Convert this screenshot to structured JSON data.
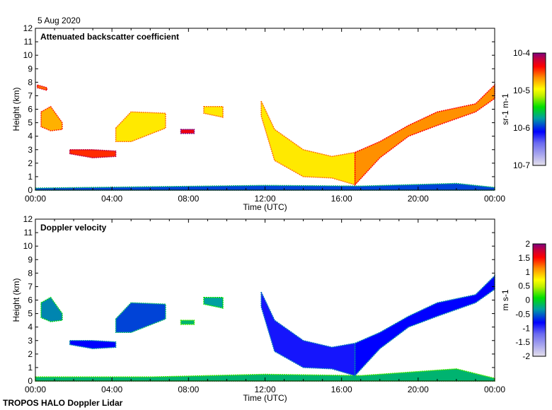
{
  "date_label": "5 Aug 2020",
  "footer": "TROPOS HALO Doppler Lidar",
  "chart_data": [
    {
      "type": "heatmap",
      "title": "Attenuated backscatter coefficient",
      "xlabel": "Time (UTC)",
      "ylabel": "Height (km)",
      "xlim": [
        0,
        24
      ],
      "ylim": [
        0,
        12
      ],
      "xticks": [
        "00:00",
        "04:00",
        "08:00",
        "12:00",
        "16:00",
        "20:00",
        "00:00"
      ],
      "yticks": [
        "0",
        "1",
        "2",
        "3",
        "4",
        "5",
        "6",
        "7",
        "8",
        "9",
        "10",
        "11",
        "12"
      ],
      "colorbar": {
        "label": "sr-1 m-1",
        "scale": "log",
        "ticks": [
          "10-7",
          "10-6",
          "10-5",
          "10-4"
        ],
        "range": [
          1e-07,
          0.0001
        ]
      },
      "features": [
        {
          "name": "boundary-layer-aerosol",
          "value": 0.35,
          "top": [
            [
              0,
              0.15
            ],
            [
              6,
              0.25
            ],
            [
              12,
              0.35
            ],
            [
              17,
              0.3
            ],
            [
              22,
              0.5
            ],
            [
              24,
              0.2
            ]
          ],
          "bottom": [
            [
              24,
              0
            ],
            [
              0,
              0
            ]
          ]
        },
        {
          "name": "cloud-early-high",
          "value": 0.8,
          "top": [
            [
              0.1,
              7.8
            ],
            [
              0.6,
              7.6
            ]
          ],
          "bottom": [
            [
              0.6,
              7.4
            ],
            [
              0.1,
              7.6
            ]
          ]
        },
        {
          "name": "cloud-early",
          "value": 0.75,
          "top": [
            [
              0.3,
              5.8
            ],
            [
              0.8,
              6.2
            ],
            [
              1.4,
              5.0
            ]
          ],
          "bottom": [
            [
              1.4,
              4.5
            ],
            [
              0.8,
              4.4
            ],
            [
              0.3,
              4.7
            ]
          ]
        },
        {
          "name": "cloud-layer-3km",
          "value": 0.85,
          "top": [
            [
              1.8,
              3.0
            ],
            [
              3,
              3.0
            ],
            [
              4.2,
              2.9
            ]
          ],
          "bottom": [
            [
              4.2,
              2.5
            ],
            [
              3,
              2.4
            ],
            [
              1.8,
              2.7
            ]
          ]
        },
        {
          "name": "cloud-5km",
          "value": 0.7,
          "top": [
            [
              4.2,
              4.6
            ],
            [
              5,
              5.8
            ],
            [
              6.8,
              5.7
            ]
          ],
          "bottom": [
            [
              6.8,
              4.6
            ],
            [
              5,
              3.6
            ],
            [
              4.2,
              3.6
            ]
          ]
        },
        {
          "name": "cloud-small-a",
          "value": 0.9,
          "top": [
            [
              7.6,
              4.5
            ],
            [
              8.3,
              4.5
            ]
          ],
          "bottom": [
            [
              8.3,
              4.2
            ],
            [
              7.6,
              4.2
            ]
          ]
        },
        {
          "name": "cloud-small-b",
          "value": 0.7,
          "top": [
            [
              8.8,
              6.2
            ],
            [
              9.8,
              6.2
            ]
          ],
          "bottom": [
            [
              9.8,
              5.4
            ],
            [
              8.8,
              5.7
            ]
          ]
        },
        {
          "name": "descending-cloud",
          "value": 0.7,
          "top": [
            [
              11.8,
              6.6
            ],
            [
              12.5,
              4.5
            ],
            [
              14,
              3
            ],
            [
              15.5,
              2.5
            ],
            [
              16.7,
              2.8
            ]
          ],
          "bottom": [
            [
              16.7,
              0.4
            ],
            [
              15.5,
              0.9
            ],
            [
              14,
              1.0
            ],
            [
              12.5,
              2.2
            ],
            [
              11.8,
              5.5
            ]
          ]
        },
        {
          "name": "rising-cloud",
          "value": 0.78,
          "top": [
            [
              16.7,
              2.8
            ],
            [
              18,
              3.6
            ],
            [
              19.5,
              4.8
            ],
            [
              21,
              5.8
            ],
            [
              23,
              6.4
            ],
            [
              24,
              7.8
            ]
          ],
          "bottom": [
            [
              24,
              6.8
            ],
            [
              23,
              5.8
            ],
            [
              21,
              4.8
            ],
            [
              19.5,
              4.0
            ],
            [
              18,
              2.4
            ],
            [
              16.7,
              0.4
            ]
          ]
        }
      ]
    },
    {
      "type": "heatmap",
      "title": "Doppler velocity",
      "xlabel": "Time (UTC)",
      "ylabel": "Height (km)",
      "xlim": [
        0,
        24
      ],
      "ylim": [
        0,
        12
      ],
      "xticks": [
        "00:00",
        "04:00",
        "08:00",
        "12:00",
        "16:00",
        "20:00",
        "00:00"
      ],
      "yticks": [
        "0",
        "1",
        "2",
        "3",
        "4",
        "5",
        "6",
        "7",
        "8",
        "9",
        "10",
        "11",
        "12"
      ],
      "colorbar": {
        "label": "m s-1",
        "scale": "linear",
        "ticks": [
          "-2",
          "-1.5",
          "-1",
          "-0.5",
          "0",
          "0.5",
          "1",
          "1.5",
          "2"
        ],
        "range": [
          -2,
          2
        ]
      },
      "features": [
        {
          "name": "boundary-layer",
          "value": 0.45,
          "top": [
            [
              0,
              0.3
            ],
            [
              6,
              0.3
            ],
            [
              12,
              0.5
            ],
            [
              17,
              0.4
            ],
            [
              22,
              0.9
            ],
            [
              24,
              0.2
            ]
          ],
          "bottom": [
            [
              24,
              0
            ],
            [
              0,
              0
            ]
          ]
        },
        {
          "name": "cloud-early",
          "value": 0.4,
          "top": [
            [
              0.3,
              5.8
            ],
            [
              0.8,
              6.2
            ],
            [
              1.4,
              5.0
            ]
          ],
          "bottom": [
            [
              1.4,
              4.5
            ],
            [
              0.8,
              4.4
            ],
            [
              0.3,
              4.7
            ]
          ]
        },
        {
          "name": "cloud-layer-3km",
          "value": 0.3,
          "top": [
            [
              1.8,
              3.0
            ],
            [
              3,
              3.0
            ],
            [
              4.2,
              2.9
            ]
          ],
          "bottom": [
            [
              4.2,
              2.5
            ],
            [
              3,
              2.4
            ],
            [
              1.8,
              2.7
            ]
          ]
        },
        {
          "name": "cloud-5km",
          "value": 0.35,
          "top": [
            [
              4.2,
              4.6
            ],
            [
              5,
              5.8
            ],
            [
              6.8,
              5.7
            ]
          ],
          "bottom": [
            [
              6.8,
              4.6
            ],
            [
              5,
              3.6
            ],
            [
              4.2,
              3.6
            ]
          ]
        },
        {
          "name": "cloud-small-a",
          "value": 0.45,
          "top": [
            [
              7.6,
              4.5
            ],
            [
              8.3,
              4.5
            ]
          ],
          "bottom": [
            [
              8.3,
              4.2
            ],
            [
              7.6,
              4.2
            ]
          ]
        },
        {
          "name": "cloud-small-b",
          "value": 0.42,
          "top": [
            [
              8.8,
              6.2
            ],
            [
              9.8,
              6.2
            ]
          ],
          "bottom": [
            [
              9.8,
              5.4
            ],
            [
              8.8,
              5.7
            ]
          ]
        },
        {
          "name": "descending-cloud",
          "value": 0.28,
          "top": [
            [
              11.8,
              6.6
            ],
            [
              12.5,
              4.5
            ],
            [
              14,
              3
            ],
            [
              15.5,
              2.5
            ],
            [
              16.7,
              2.8
            ]
          ],
          "bottom": [
            [
              16.7,
              0.4
            ],
            [
              15.5,
              0.9
            ],
            [
              14,
              1.0
            ],
            [
              12.5,
              2.2
            ],
            [
              11.8,
              5.5
            ]
          ]
        },
        {
          "name": "rising-cloud",
          "value": 0.3,
          "top": [
            [
              16.7,
              2.8
            ],
            [
              18,
              3.6
            ],
            [
              19.5,
              4.8
            ],
            [
              21,
              5.8
            ],
            [
              23,
              6.4
            ],
            [
              24,
              7.8
            ]
          ],
          "bottom": [
            [
              24,
              6.8
            ],
            [
              23,
              5.8
            ],
            [
              21,
              4.8
            ],
            [
              19.5,
              4.0
            ],
            [
              18,
              2.4
            ],
            [
              16.7,
              0.4
            ]
          ]
        }
      ]
    }
  ]
}
